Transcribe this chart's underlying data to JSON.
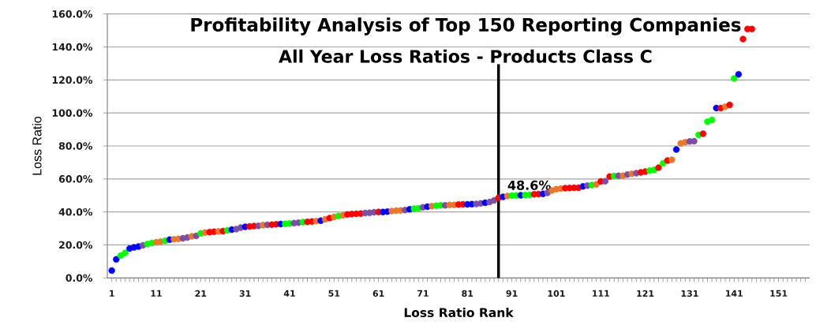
{
  "chart_data": {
    "type": "scatter",
    "title": "Profitability Analysis of Top 150 Reporting Companies",
    "subtitle": "All Year Loss Ratios - Products Class C",
    "xlabel": "Loss Ratio Rank",
    "ylabel": "Loss Ratio",
    "x": [
      1,
      2,
      3,
      4,
      5,
      6,
      7,
      8,
      9,
      10,
      11,
      12,
      13,
      14,
      15,
      16,
      17,
      18,
      19,
      20,
      21,
      22,
      23,
      24,
      25,
      26,
      27,
      28,
      29,
      30,
      31,
      32,
      33,
      34,
      35,
      36,
      37,
      38,
      39,
      40,
      41,
      42,
      43,
      44,
      45,
      46,
      47,
      48,
      49,
      50,
      51,
      52,
      53,
      54,
      55,
      56,
      57,
      58,
      59,
      60,
      61,
      62,
      63,
      64,
      65,
      66,
      67,
      68,
      69,
      70,
      71,
      72,
      73,
      74,
      75,
      76,
      77,
      78,
      79,
      80,
      81,
      82,
      83,
      84,
      85,
      86,
      87,
      88,
      89,
      90,
      91,
      92,
      93,
      94,
      95,
      96,
      97,
      98,
      99,
      100,
      101,
      102,
      103,
      104,
      105,
      106,
      107,
      108,
      109,
      110,
      111,
      112,
      113,
      114,
      115,
      116,
      117,
      118,
      119,
      120,
      121,
      122,
      123,
      124,
      125,
      126,
      127,
      128,
      129,
      130,
      131,
      132,
      133,
      134,
      135,
      136,
      137,
      138,
      139,
      140,
      141,
      142,
      143,
      144,
      145
    ],
    "values": [
      4.5,
      11.3,
      13.5,
      15.2,
      17.8,
      18.5,
      19.0,
      19.8,
      20.6,
      21.2,
      21.6,
      22.0,
      22.5,
      23.2,
      23.5,
      23.7,
      24.0,
      24.5,
      25.2,
      25.5,
      27.0,
      27.5,
      27.8,
      28.0,
      28.2,
      28.4,
      28.8,
      29.3,
      29.6,
      30.5,
      31.0,
      31.2,
      31.4,
      31.6,
      32.0,
      32.2,
      32.3,
      32.5,
      32.7,
      32.8,
      33.0,
      33.2,
      33.5,
      33.9,
      34.0,
      34.2,
      34.4,
      34.7,
      35.5,
      36.3,
      37.0,
      37.5,
      37.9,
      38.5,
      38.7,
      38.9,
      39.0,
      39.3,
      39.5,
      39.8,
      40.0,
      40.0,
      40.2,
      40.6,
      40.8,
      40.9,
      41.1,
      41.6,
      42.0,
      42.2,
      42.8,
      43.2,
      43.5,
      43.8,
      44.0,
      44.0,
      44.2,
      44.3,
      44.5,
      44.6,
      44.6,
      44.7,
      44.8,
      45.2,
      45.6,
      46.0,
      47.0,
      48.6,
      49.1,
      49.6,
      49.9,
      50.0,
      50.1,
      50.2,
      50.4,
      50.7,
      50.8,
      51.0,
      51.6,
      53.0,
      53.8,
      54.2,
      54.4,
      54.5,
      54.6,
      54.7,
      55.5,
      56.0,
      56.3,
      56.7,
      58.5,
      58.6,
      61.5,
      61.8,
      61.9,
      62.0,
      62.7,
      63.1,
      63.5,
      64.0,
      64.4,
      65.0,
      65.5,
      66.8,
      69.5,
      71.1,
      71.6,
      77.8,
      81.5,
      82.3,
      82.7,
      82.9,
      86.7,
      87.4,
      94.7,
      95.8,
      103.0,
      103.0,
      103.8,
      104.9,
      120.9,
      123.4,
      144.8,
      150.9,
      150.9
    ],
    "colors": [
      "#0000ff",
      "#0000ff",
      "#00ff00",
      "#00ff00",
      "#0000ff",
      "#0000ff",
      "#0000ff",
      "#7b4fa6",
      "#00ff00",
      "#00ff00",
      "#e9782c",
      "#e9782c",
      "#00ff00",
      "#0000ff",
      "#e9782c",
      "#e9782c",
      "#7b4fa6",
      "#7b4fa6",
      "#e9782c",
      "#7b4fa6",
      "#00ff00",
      "#e9782c",
      "#ff0000",
      "#ff0000",
      "#e9782c",
      "#ff0000",
      "#00ff00",
      "#0000ff",
      "#7b4fa6",
      "#7b4fa6",
      "#0000ff",
      "#ff0000",
      "#ff0000",
      "#7b4fa6",
      "#e9782c",
      "#7b4fa6",
      "#ff0000",
      "#ff0000",
      "#0000ff",
      "#00ff00",
      "#00ff00",
      "#7b4fa6",
      "#7b4fa6",
      "#00ff00",
      "#ff0000",
      "#ff0000",
      "#e9782c",
      "#0000ff",
      "#e9782c",
      "#ff0000",
      "#e9782c",
      "#00ff00",
      "#e9782c",
      "#ff0000",
      "#ff0000",
      "#ff0000",
      "#ff0000",
      "#7b4fa6",
      "#7b4fa6",
      "#7b4fa6",
      "#ff0000",
      "#0000ff",
      "#0000ff",
      "#e9782c",
      "#e9782c",
      "#e9782c",
      "#7b4fa6",
      "#0000ff",
      "#00ff00",
      "#00ff00",
      "#7b4fa6",
      "#0000ff",
      "#e9782c",
      "#00ff00",
      "#00ff00",
      "#7b4fa6",
      "#e9782c",
      "#e9782c",
      "#ff0000",
      "#ff0000",
      "#0000ff",
      "#0000ff",
      "#7b4fa6",
      "#7b4fa6",
      "#0000ff",
      "#7b4fa6",
      "#7b4fa6",
      "#ff0000",
      "#0000ff",
      "#e9782c",
      "#00ff00",
      "#00ff00",
      "#0000ff",
      "#00ff00",
      "#00ff00",
      "#ff0000",
      "#ff0000",
      "#0000ff",
      "#7b4fa6",
      "#e9782c",
      "#e9782c",
      "#e9782c",
      "#ff0000",
      "#ff0000",
      "#ff0000",
      "#ff0000",
      "#0000ff",
      "#7b4fa6",
      "#00ff00",
      "#e9782c",
      "#ff0000",
      "#7b4fa6",
      "#ff0000",
      "#00ff00",
      "#7b4fa6",
      "#e9782c",
      "#7b4fa6",
      "#e9782c",
      "#7b4fa6",
      "#ff0000",
      "#ff0000",
      "#00ff00",
      "#00ff00",
      "#ff0000",
      "#00ff00",
      "#ff0000",
      "#e9782c",
      "#0000ff",
      "#e9782c",
      "#e9782c",
      "#7b4fa6",
      "#7b4fa6",
      "#00ff00",
      "#ff0000",
      "#00ff00",
      "#00ff00",
      "#0000ff",
      "#ff0000",
      "#e9782c",
      "#ff0000",
      "#00ff00",
      "#0000ff",
      "#ff0000",
      "#ff0000",
      "#ff0000"
    ],
    "marker": "circle",
    "xlim": [
      0,
      158
    ],
    "xticks": [
      1,
      {
        "value": 2,
        "label": null
      },
      {
        "value": 3,
        "label": null
      },
      {
        "value": 4,
        "label": null
      },
      {
        "value": 5,
        "label": null
      },
      {
        "value": 6,
        "label": null
      },
      {
        "value": 7,
        "label": null
      },
      {
        "value": 8,
        "label": null
      },
      {
        "value": 9,
        "label": null
      },
      {
        "value": 10,
        "label": null
      },
      11,
      {
        "value": 12,
        "label": null
      },
      {
        "value": 13,
        "label": null
      },
      {
        "value": 14,
        "label": null
      },
      {
        "value": 15,
        "label": null
      },
      {
        "value": 16,
        "label": null
      },
      {
        "value": 17,
        "label": null
      },
      {
        "value": 18,
        "label": null
      },
      {
        "value": 19,
        "label": null
      },
      {
        "value": 20,
        "label": null
      },
      21,
      {
        "value": 22,
        "label": null
      },
      {
        "value": 23,
        "label": null
      },
      {
        "value": 24,
        "label": null
      },
      {
        "value": 25,
        "label": null
      },
      {
        "value": 26,
        "label": null
      },
      {
        "value": 27,
        "label": null
      },
      {
        "value": 28,
        "label": null
      },
      {
        "value": 29,
        "label": null
      },
      {
        "value": 30,
        "label": null
      },
      31,
      {
        "value": 32,
        "label": null
      },
      {
        "value": 33,
        "label": null
      },
      {
        "value": 34,
        "label": null
      },
      {
        "value": 35,
        "label": null
      },
      {
        "value": 36,
        "label": null
      },
      {
        "value": 37,
        "label": null
      },
      {
        "value": 38,
        "label": null
      },
      {
        "value": 39,
        "label": null
      },
      {
        "value": 40,
        "label": null
      },
      41,
      {
        "value": 42,
        "label": null
      },
      {
        "value": 43,
        "label": null
      },
      {
        "value": 44,
        "label": null
      },
      {
        "value": 45,
        "label": null
      },
      {
        "value": 46,
        "label": null
      },
      {
        "value": 47,
        "label": null
      },
      {
        "value": 48,
        "label": null
      },
      {
        "value": 49,
        "label": null
      },
      {
        "value": 50,
        "label": null
      },
      51,
      {
        "value": 52,
        "label": null
      },
      {
        "value": 53,
        "label": null
      },
      {
        "value": 54,
        "label": null
      },
      {
        "value": 55,
        "label": null
      },
      {
        "value": 56,
        "label": null
      },
      {
        "value": 57,
        "label": null
      },
      {
        "value": 58,
        "label": null
      },
      {
        "value": 59,
        "label": null
      },
      {
        "value": 60,
        "label": null
      },
      61,
      {
        "value": 62,
        "label": null
      },
      {
        "value": 63,
        "label": null
      },
      {
        "value": 64,
        "label": null
      },
      {
        "value": 65,
        "label": null
      },
      {
        "value": 66,
        "label": null
      },
      {
        "value": 67,
        "label": null
      },
      {
        "value": 68,
        "label": null
      },
      {
        "value": 69,
        "label": null
      },
      {
        "value": 70,
        "label": null
      },
      71,
      {
        "value": 72,
        "label": null
      },
      {
        "value": 73,
        "label": null
      },
      {
        "value": 74,
        "label": null
      },
      {
        "value": 75,
        "label": null
      },
      {
        "value": 76,
        "label": null
      },
      {
        "value": 77,
        "label": null
      },
      {
        "value": 78,
        "label": null
      },
      {
        "value": 79,
        "label": null
      },
      {
        "value": 80,
        "label": null
      },
      81,
      {
        "value": 82,
        "label": null
      },
      {
        "value": 83,
        "label": null
      },
      {
        "value": 84,
        "label": null
      },
      {
        "value": 85,
        "label": null
      },
      {
        "value": 86,
        "label": null
      },
      {
        "value": 87,
        "label": null
      },
      {
        "value": 88,
        "label": null
      },
      {
        "value": 89,
        "label": null
      },
      {
        "value": 90,
        "label": null
      },
      91,
      {
        "value": 92,
        "label": null
      },
      {
        "value": 93,
        "label": null
      },
      {
        "value": 94,
        "label": null
      },
      {
        "value": 95,
        "label": null
      },
      {
        "value": 96,
        "label": null
      },
      {
        "value": 97,
        "label": null
      },
      {
        "value": 98,
        "label": null
      },
      {
        "value": 99,
        "label": null
      },
      {
        "value": 100,
        "label": null
      },
      101,
      {
        "value": 102,
        "label": null
      },
      {
        "value": 103,
        "label": null
      },
      {
        "value": 104,
        "label": null
      },
      {
        "value": 105,
        "label": null
      },
      {
        "value": 106,
        "label": null
      },
      {
        "value": 107,
        "label": null
      },
      {
        "value": 108,
        "label": null
      },
      {
        "value": 109,
        "label": null
      },
      {
        "value": 110,
        "label": null
      },
      111,
      {
        "value": 112,
        "label": null
      },
      {
        "value": 113,
        "label": null
      },
      {
        "value": 114,
        "label": null
      },
      {
        "value": 115,
        "label": null
      },
      {
        "value": 116,
        "label": null
      },
      {
        "value": 117,
        "label": null
      },
      {
        "value": 118,
        "label": null
      },
      {
        "value": 119,
        "label": null
      },
      {
        "value": 120,
        "label": null
      },
      121,
      {
        "value": 122,
        "label": null
      },
      {
        "value": 123,
        "label": null
      },
      {
        "value": 124,
        "label": null
      },
      {
        "value": 125,
        "label": null
      },
      {
        "value": 126,
        "label": null
      },
      {
        "value": 127,
        "label": null
      },
      {
        "value": 128,
        "label": null
      },
      {
        "value": 129,
        "label": null
      },
      {
        "value": 130,
        "label": null
      },
      131,
      {
        "value": 132,
        "label": null
      },
      {
        "value": 133,
        "label": null
      },
      {
        "value": 134,
        "label": null
      },
      {
        "value": 135,
        "label": null
      },
      {
        "value": 136,
        "label": null
      },
      {
        "value": 137,
        "label": null
      },
      {
        "value": 138,
        "label": null
      },
      {
        "value": 139,
        "label": null
      },
      {
        "value": 140,
        "label": null
      },
      141,
      {
        "value": 142,
        "label": null
      },
      {
        "value": 143,
        "label": null
      },
      {
        "value": 144,
        "label": null
      },
      {
        "value": 145,
        "label": null
      },
      {
        "value": 146,
        "label": null
      },
      {
        "value": 147,
        "label": null
      },
      {
        "value": 148,
        "label": null
      },
      {
        "value": 149,
        "label": null
      },
      {
        "value": 150,
        "label": null
      },
      151,
      {
        "value": 152,
        "label": null
      },
      {
        "value": 153,
        "label": null
      },
      {
        "value": 154,
        "label": null
      },
      {
        "value": 155,
        "label": null
      },
      {
        "value": 156,
        "label": null
      },
      {
        "value": 157,
        "label": null
      }
    ],
    "ylim": [
      0,
      160
    ],
    "yticks": [
      {
        "value": 0,
        "label": "0.0%"
      },
      {
        "value": 20,
        "label": "20.0%"
      },
      {
        "value": 40,
        "label": "40.0%"
      },
      {
        "value": 60,
        "label": "60.0%"
      },
      {
        "value": 80,
        "label": "80.0%"
      },
      {
        "value": 100,
        "label": "100.0%"
      },
      {
        "value": 120,
        "label": "120.0%"
      },
      {
        "value": 140,
        "label": "140.0%"
      },
      {
        "value": 160,
        "label": "160.0%"
      }
    ],
    "grid": "y",
    "ref_lines": [
      {
        "axis": "x",
        "value": 88,
        "color": "#000000"
      }
    ],
    "annotations": [
      {
        "text": "48.6%",
        "x": 88,
        "y": 48.6
      }
    ]
  }
}
